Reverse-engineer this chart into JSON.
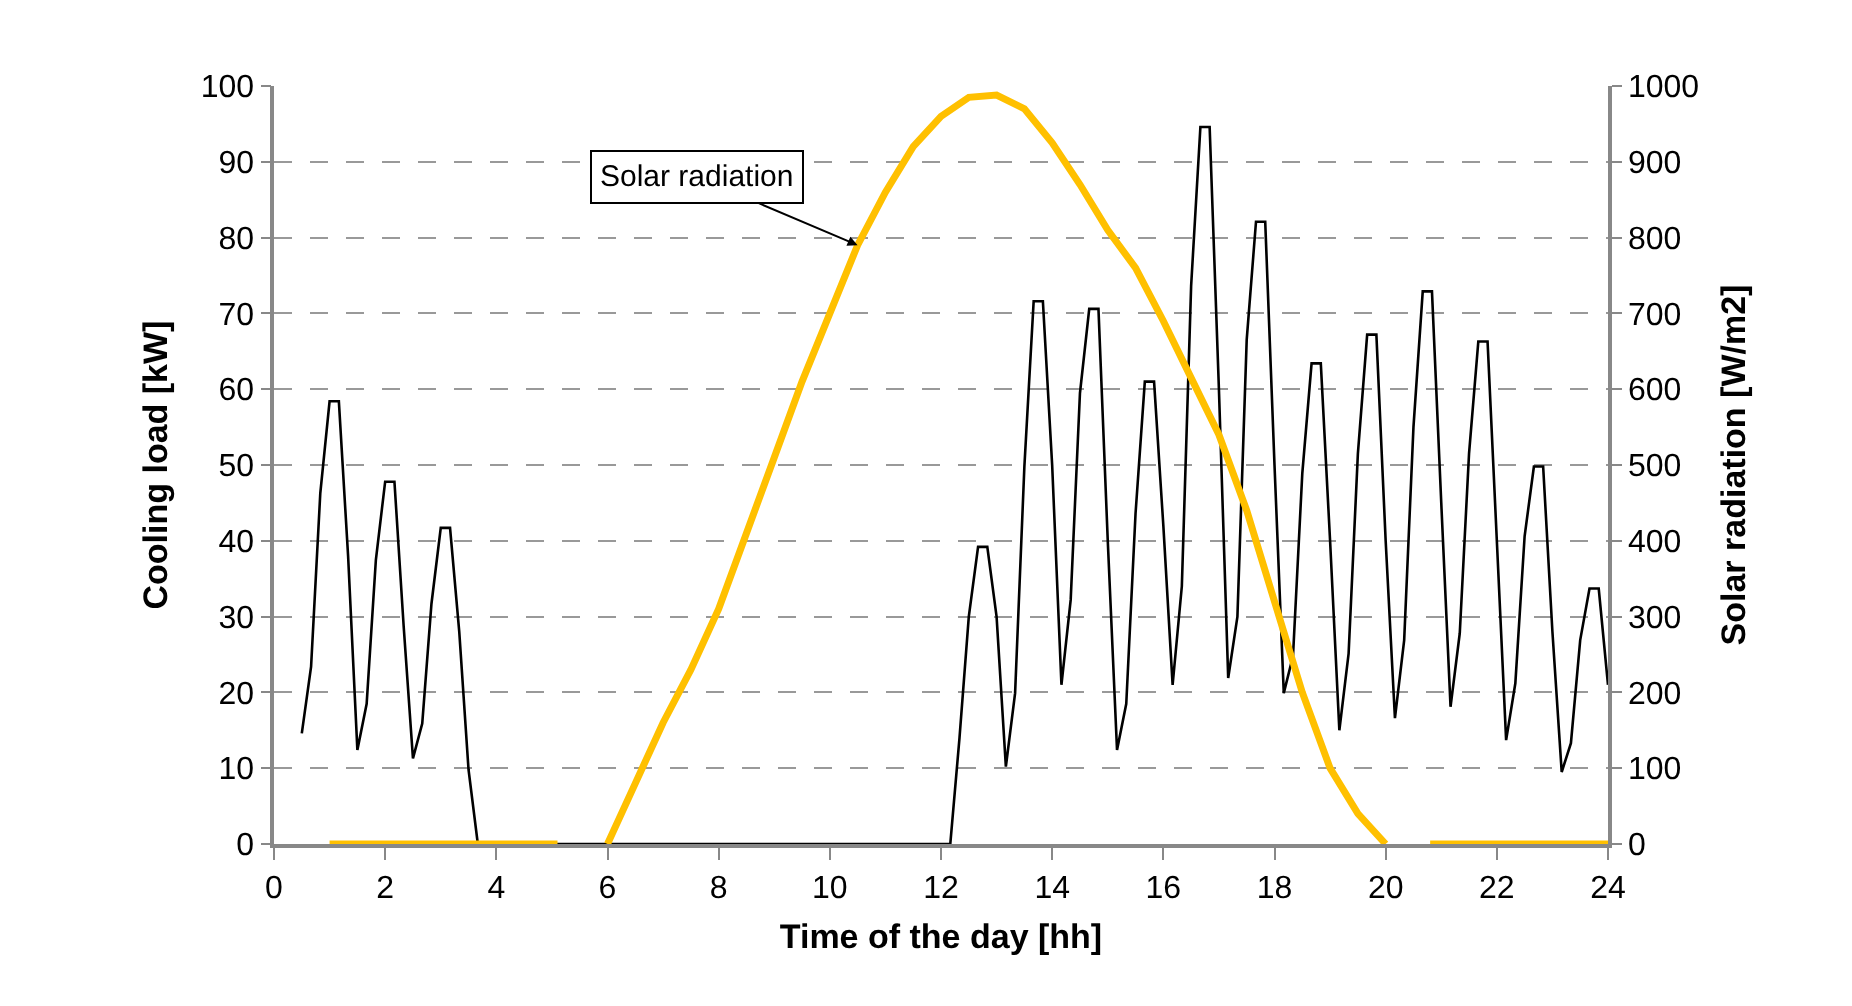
{
  "chart_data": {
    "type": "line",
    "xlabel": "Time of the day [hh]",
    "ylabel": "Cooling load [kW]",
    "y2label": "Solar radiation [W/m2]",
    "xlim": [
      0,
      24
    ],
    "xticks": [
      0,
      2,
      4,
      6,
      8,
      10,
      12,
      14,
      16,
      18,
      20,
      22,
      24
    ],
    "ylim": [
      0,
      100
    ],
    "yticks": [
      0,
      10,
      20,
      30,
      40,
      50,
      60,
      70,
      80,
      90,
      100
    ],
    "y2lim": [
      0,
      1000
    ],
    "y2ticks": [
      0,
      100,
      200,
      300,
      400,
      500,
      600,
      700,
      800,
      900,
      1000
    ],
    "grid": "y",
    "marker": "none",
    "line_style": "solid",
    "annotations": [
      {
        "text": "Solar radiation",
        "x": 10.5,
        "y": 79
      }
    ],
    "series": [
      {
        "color": "#000000",
        "x": [
          0.5,
          0.667,
          0.833,
          1,
          1.167,
          1.333,
          1.5,
          1.667,
          1.833,
          2,
          2.167,
          2.333,
          2.5,
          2.667,
          2.833,
          3,
          3.167,
          3.333,
          3.5,
          3.667,
          12.167,
          12.333,
          12.5,
          12.667,
          12.833,
          13,
          13.167,
          13.333,
          13.5,
          13.667,
          13.833,
          14,
          14.167,
          14.333,
          14.5,
          14.667,
          14.833,
          15,
          15.167,
          15.333,
          15.5,
          15.667,
          15.833,
          16,
          16.167,
          16.333,
          16.5,
          16.667,
          16.833,
          17,
          17.167,
          17.333,
          17.5,
          17.667,
          17.833,
          18,
          18.167,
          18.333,
          18.5,
          18.667,
          18.833,
          19,
          19.167,
          19.333,
          19.5,
          19.667,
          19.833,
          20,
          20.167,
          20.333,
          20.5,
          20.667,
          20.833,
          21,
          21.167,
          21.333,
          21.5,
          21.667,
          21.833,
          22,
          22.167,
          22.333,
          22.5,
          22.667,
          22.833,
          23,
          23.167,
          23.333,
          23.5,
          23.667,
          23.833,
          24
        ],
        "values": [
          14.6,
          23.4,
          46.3,
          58.4,
          58.4,
          38,
          12.4,
          18.5,
          37.5,
          47.8,
          47.8,
          28.7,
          11.3,
          15.9,
          31.7,
          41.7,
          41.7,
          28,
          9.8,
          0,
          0,
          14,
          30,
          39.2,
          39.2,
          30,
          10.2,
          19.9,
          49.8,
          71.6,
          71.6,
          50,
          21,
          32.2,
          59.5,
          70.6,
          70.6,
          40,
          12.4,
          18.5,
          43.6,
          61,
          61,
          42,
          21,
          34,
          73.6,
          94.6,
          94.6,
          60,
          21.9,
          30,
          66.5,
          82.1,
          82.1,
          50,
          19.9,
          24.8,
          48.9,
          63.4,
          63.4,
          40,
          15,
          25.1,
          51.5,
          67.2,
          67.2,
          40,
          16.6,
          26.9,
          55,
          72.9,
          72.9,
          45,
          18.1,
          27.8,
          51.5,
          66.3,
          66.3,
          40,
          13.7,
          21.2,
          40.6,
          49.8,
          49.8,
          28,
          9.5,
          13.3,
          26.9,
          33.7,
          33.7,
          21
        ]
      },
      {
        "color": "#ffc000",
        "axis": "y2",
        "x": [
          1,
          5.1,
          5.5,
          6,
          6.5,
          7,
          7.5,
          8,
          8.5,
          9,
          9.5,
          10,
          10.5,
          11,
          11.5,
          12,
          12.5,
          13,
          13.5,
          14,
          14.5,
          15,
          15.5,
          16,
          16.5,
          17,
          17.5,
          18,
          18.5,
          19,
          19.5,
          20,
          20.4,
          20.8,
          24
        ],
        "values": [
          0,
          0,
          null,
          0,
          80,
          160,
          230,
          310,
          410,
          510,
          610,
          700,
          790,
          860,
          920,
          960,
          985,
          988,
          970,
          925,
          870,
          810,
          760,
          690,
          615,
          540,
          440,
          320,
          200,
          100,
          40,
          0,
          null,
          0,
          0
        ]
      }
    ]
  }
}
